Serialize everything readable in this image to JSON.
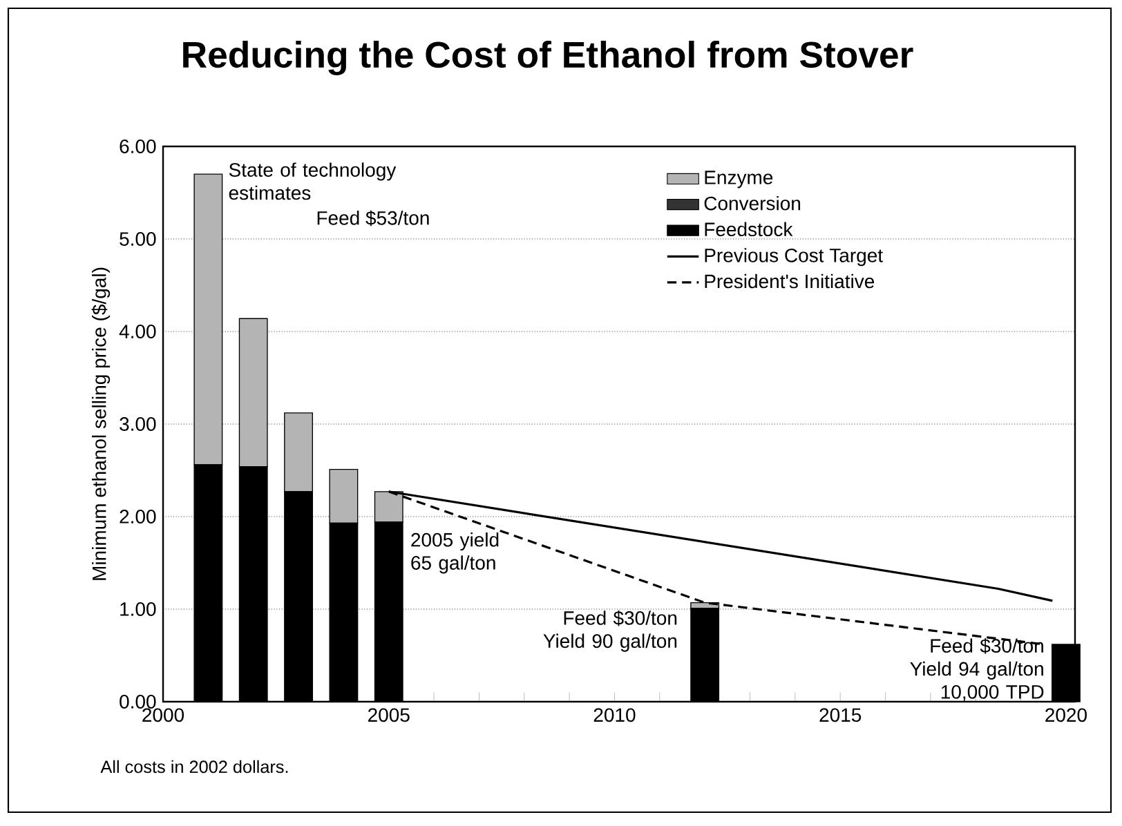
{
  "chart_data": {
    "type": "bar",
    "title": "Reducing the Cost of Ethanol from Stover",
    "ylabel": "Minimum ethanol selling price ($/gal)",
    "stacked": true,
    "x": [
      2001,
      2002,
      2003,
      2004,
      2005,
      2012,
      2020
    ],
    "series": [
      {
        "name": "Feedstock",
        "color": "#000000",
        "values": [
          2.56,
          2.54,
          2.27,
          1.93,
          1.94,
          1.01,
          0.62
        ]
      },
      {
        "name": "Conversion",
        "color": "#333333",
        "values": [
          null,
          null,
          null,
          null,
          null,
          null,
          null
        ]
      },
      {
        "name": "Enzyme",
        "color": "#b4b4b4",
        "values": [
          3.14,
          1.6,
          0.85,
          0.58,
          0.33,
          0.06,
          null
        ]
      },
      {
        "name": "Previous Cost Target",
        "type": "line",
        "line_style": "solid",
        "color": "#000000",
        "x": [
          2005,
          2018.5,
          2019.7
        ],
        "values": [
          2.27,
          1.22,
          1.09
        ]
      },
      {
        "name": "President's Initiative",
        "type": "line",
        "line_style": "dashed",
        "color": "#000000",
        "x": [
          2005,
          2012,
          2019.5
        ],
        "values": [
          2.27,
          1.07,
          0.62
        ]
      }
    ],
    "xlim": [
      2000,
      2020.2
    ],
    "xticks": [
      2000,
      {
        "value": 2001,
        "label": null
      },
      {
        "value": 2002,
        "label": null
      },
      {
        "value": 2003,
        "label": null
      },
      {
        "value": 2004,
        "label": null
      },
      2005,
      {
        "value": 2006,
        "label": null
      },
      {
        "value": 2007,
        "label": null
      },
      {
        "value": 2008,
        "label": null
      },
      {
        "value": 2009,
        "label": null
      },
      2010,
      {
        "value": 2011,
        "label": null
      },
      {
        "value": 2012,
        "label": null
      },
      {
        "value": 2013,
        "label": null
      },
      {
        "value": 2014,
        "label": null
      },
      2015,
      {
        "value": 2016,
        "label": null
      },
      {
        "value": 2017,
        "label": null
      },
      {
        "value": 2018,
        "label": null
      },
      {
        "value": 2019,
        "label": null
      },
      2020
    ],
    "ylim": [
      0,
      6
    ],
    "yticks": [
      {
        "value": 0,
        "label": "0.00"
      },
      {
        "value": 1,
        "label": "1.00"
      },
      {
        "value": 2,
        "label": "2.00"
      },
      {
        "value": 3,
        "label": "3.00"
      },
      {
        "value": 4,
        "label": "4.00"
      },
      {
        "value": 5,
        "label": "5.00"
      },
      {
        "value": 6,
        "label": "6.00"
      }
    ],
    "grid": "y",
    "legend": "top right",
    "annotations": [
      {
        "text": "State of technology estimates",
        "x": 2001,
        "y": 5.7
      },
      "Feed $53/ton",
      {
        "text": "2005 yield 65 gal/ton",
        "x": 2005,
        "y": 2.27
      },
      {
        "text": "Feed $30/ton Yield 90 gal/ton",
        "x": 2012,
        "y": 1.07
      },
      {
        "text": "Feed $30/ton Yield 94 gal/ton 10,000 TPD",
        "x": 2020,
        "y": 0.62
      },
      "All costs in 2002 dollars."
    ]
  }
}
